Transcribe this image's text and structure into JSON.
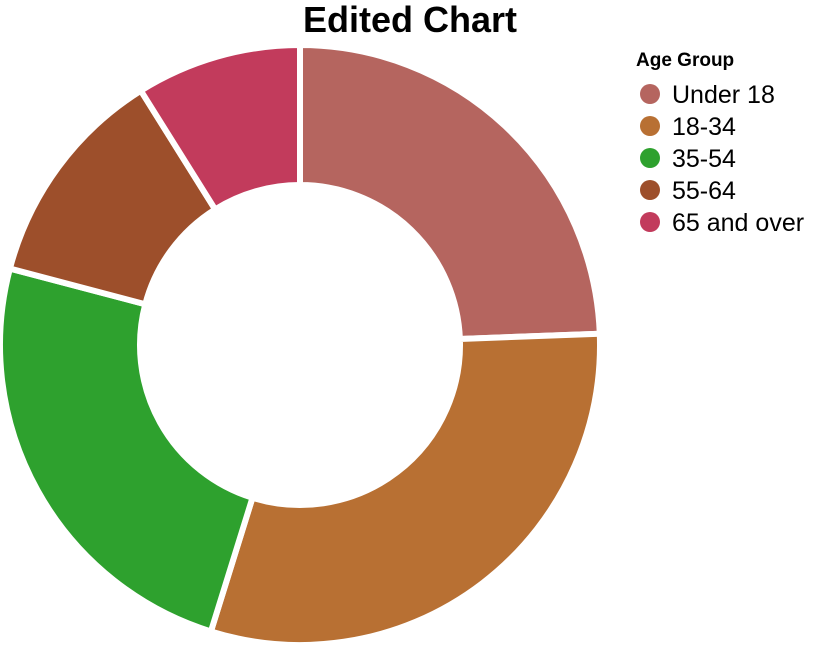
{
  "chart_data": {
    "type": "pie",
    "title": "Edited Chart",
    "legend_title": "Age Group",
    "legend_position": "top-right",
    "donut": true,
    "categories": [
      "Under 18",
      "18-34",
      "35-54",
      "55-64",
      "65 and over"
    ],
    "values": [
      24.4,
      30.4,
      24.3,
      12.0,
      8.9
    ],
    "colors": [
      "#b5655f",
      "#b87033",
      "#2ea12e",
      "#9d4f2b",
      "#c23b5c"
    ]
  }
}
